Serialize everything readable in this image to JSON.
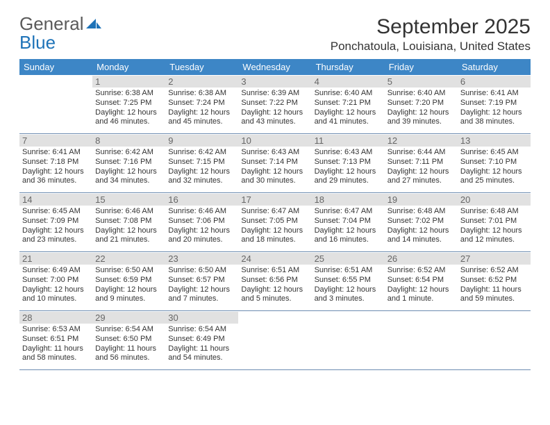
{
  "logo": {
    "word1": "General",
    "word2": "Blue"
  },
  "title": "September 2025",
  "location": "Ponchatoula, Louisiana, United States",
  "colors": {
    "header_bar": "#3d86c6",
    "daynum_bg": "#e1e1e1",
    "rule": "#6b8bb0",
    "logo_gray": "#5a5a5a",
    "logo_blue": "#1e73b8",
    "text": "#333333"
  },
  "dow": [
    "Sunday",
    "Monday",
    "Tuesday",
    "Wednesday",
    "Thursday",
    "Friday",
    "Saturday"
  ],
  "weeks": [
    [
      {
        "n": "",
        "lines": []
      },
      {
        "n": "1",
        "lines": [
          "Sunrise: 6:38 AM",
          "Sunset: 7:25 PM",
          "Daylight: 12 hours and 46 minutes."
        ]
      },
      {
        "n": "2",
        "lines": [
          "Sunrise: 6:38 AM",
          "Sunset: 7:24 PM",
          "Daylight: 12 hours and 45 minutes."
        ]
      },
      {
        "n": "3",
        "lines": [
          "Sunrise: 6:39 AM",
          "Sunset: 7:22 PM",
          "Daylight: 12 hours and 43 minutes."
        ]
      },
      {
        "n": "4",
        "lines": [
          "Sunrise: 6:40 AM",
          "Sunset: 7:21 PM",
          "Daylight: 12 hours and 41 minutes."
        ]
      },
      {
        "n": "5",
        "lines": [
          "Sunrise: 6:40 AM",
          "Sunset: 7:20 PM",
          "Daylight: 12 hours and 39 minutes."
        ]
      },
      {
        "n": "6",
        "lines": [
          "Sunrise: 6:41 AM",
          "Sunset: 7:19 PM",
          "Daylight: 12 hours and 38 minutes."
        ]
      }
    ],
    [
      {
        "n": "7",
        "lines": [
          "Sunrise: 6:41 AM",
          "Sunset: 7:18 PM",
          "Daylight: 12 hours and 36 minutes."
        ]
      },
      {
        "n": "8",
        "lines": [
          "Sunrise: 6:42 AM",
          "Sunset: 7:16 PM",
          "Daylight: 12 hours and 34 minutes."
        ]
      },
      {
        "n": "9",
        "lines": [
          "Sunrise: 6:42 AM",
          "Sunset: 7:15 PM",
          "Daylight: 12 hours and 32 minutes."
        ]
      },
      {
        "n": "10",
        "lines": [
          "Sunrise: 6:43 AM",
          "Sunset: 7:14 PM",
          "Daylight: 12 hours and 30 minutes."
        ]
      },
      {
        "n": "11",
        "lines": [
          "Sunrise: 6:43 AM",
          "Sunset: 7:13 PM",
          "Daylight: 12 hours and 29 minutes."
        ]
      },
      {
        "n": "12",
        "lines": [
          "Sunrise: 6:44 AM",
          "Sunset: 7:11 PM",
          "Daylight: 12 hours and 27 minutes."
        ]
      },
      {
        "n": "13",
        "lines": [
          "Sunrise: 6:45 AM",
          "Sunset: 7:10 PM",
          "Daylight: 12 hours and 25 minutes."
        ]
      }
    ],
    [
      {
        "n": "14",
        "lines": [
          "Sunrise: 6:45 AM",
          "Sunset: 7:09 PM",
          "Daylight: 12 hours and 23 minutes."
        ]
      },
      {
        "n": "15",
        "lines": [
          "Sunrise: 6:46 AM",
          "Sunset: 7:08 PM",
          "Daylight: 12 hours and 21 minutes."
        ]
      },
      {
        "n": "16",
        "lines": [
          "Sunrise: 6:46 AM",
          "Sunset: 7:06 PM",
          "Daylight: 12 hours and 20 minutes."
        ]
      },
      {
        "n": "17",
        "lines": [
          "Sunrise: 6:47 AM",
          "Sunset: 7:05 PM",
          "Daylight: 12 hours and 18 minutes."
        ]
      },
      {
        "n": "18",
        "lines": [
          "Sunrise: 6:47 AM",
          "Sunset: 7:04 PM",
          "Daylight: 12 hours and 16 minutes."
        ]
      },
      {
        "n": "19",
        "lines": [
          "Sunrise: 6:48 AM",
          "Sunset: 7:02 PM",
          "Daylight: 12 hours and 14 minutes."
        ]
      },
      {
        "n": "20",
        "lines": [
          "Sunrise: 6:48 AM",
          "Sunset: 7:01 PM",
          "Daylight: 12 hours and 12 minutes."
        ]
      }
    ],
    [
      {
        "n": "21",
        "lines": [
          "Sunrise: 6:49 AM",
          "Sunset: 7:00 PM",
          "Daylight: 12 hours and 10 minutes."
        ]
      },
      {
        "n": "22",
        "lines": [
          "Sunrise: 6:50 AM",
          "Sunset: 6:59 PM",
          "Daylight: 12 hours and 9 minutes."
        ]
      },
      {
        "n": "23",
        "lines": [
          "Sunrise: 6:50 AM",
          "Sunset: 6:57 PM",
          "Daylight: 12 hours and 7 minutes."
        ]
      },
      {
        "n": "24",
        "lines": [
          "Sunrise: 6:51 AM",
          "Sunset: 6:56 PM",
          "Daylight: 12 hours and 5 minutes."
        ]
      },
      {
        "n": "25",
        "lines": [
          "Sunrise: 6:51 AM",
          "Sunset: 6:55 PM",
          "Daylight: 12 hours and 3 minutes."
        ]
      },
      {
        "n": "26",
        "lines": [
          "Sunrise: 6:52 AM",
          "Sunset: 6:54 PM",
          "Daylight: 12 hours and 1 minute."
        ]
      },
      {
        "n": "27",
        "lines": [
          "Sunrise: 6:52 AM",
          "Sunset: 6:52 PM",
          "Daylight: 11 hours and 59 minutes."
        ]
      }
    ],
    [
      {
        "n": "28",
        "lines": [
          "Sunrise: 6:53 AM",
          "Sunset: 6:51 PM",
          "Daylight: 11 hours and 58 minutes."
        ]
      },
      {
        "n": "29",
        "lines": [
          "Sunrise: 6:54 AM",
          "Sunset: 6:50 PM",
          "Daylight: 11 hours and 56 minutes."
        ]
      },
      {
        "n": "30",
        "lines": [
          "Sunrise: 6:54 AM",
          "Sunset: 6:49 PM",
          "Daylight: 11 hours and 54 minutes."
        ]
      },
      {
        "n": "",
        "lines": []
      },
      {
        "n": "",
        "lines": []
      },
      {
        "n": "",
        "lines": []
      },
      {
        "n": "",
        "lines": []
      }
    ]
  ]
}
